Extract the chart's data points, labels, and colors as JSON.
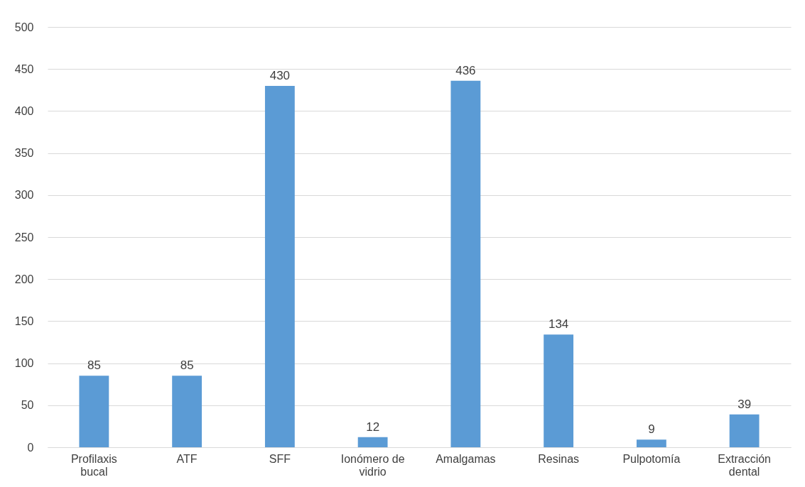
{
  "chart_data": {
    "type": "bar",
    "categories": [
      "Profilaxis bucal",
      "ATF",
      "SFF",
      "Ionómero de vidrio",
      "Amalgamas",
      "Resinas",
      "Pulpotomía",
      "Extracción dental"
    ],
    "values": [
      85,
      85,
      430,
      12,
      436,
      134,
      9,
      39
    ],
    "color": "#5b9bd5",
    "ylim": [
      0,
      500
    ],
    "yticks": [
      0,
      50,
      100,
      150,
      200,
      250,
      300,
      350,
      400,
      450,
      500
    ],
    "grid": "y",
    "data_labels": true
  }
}
